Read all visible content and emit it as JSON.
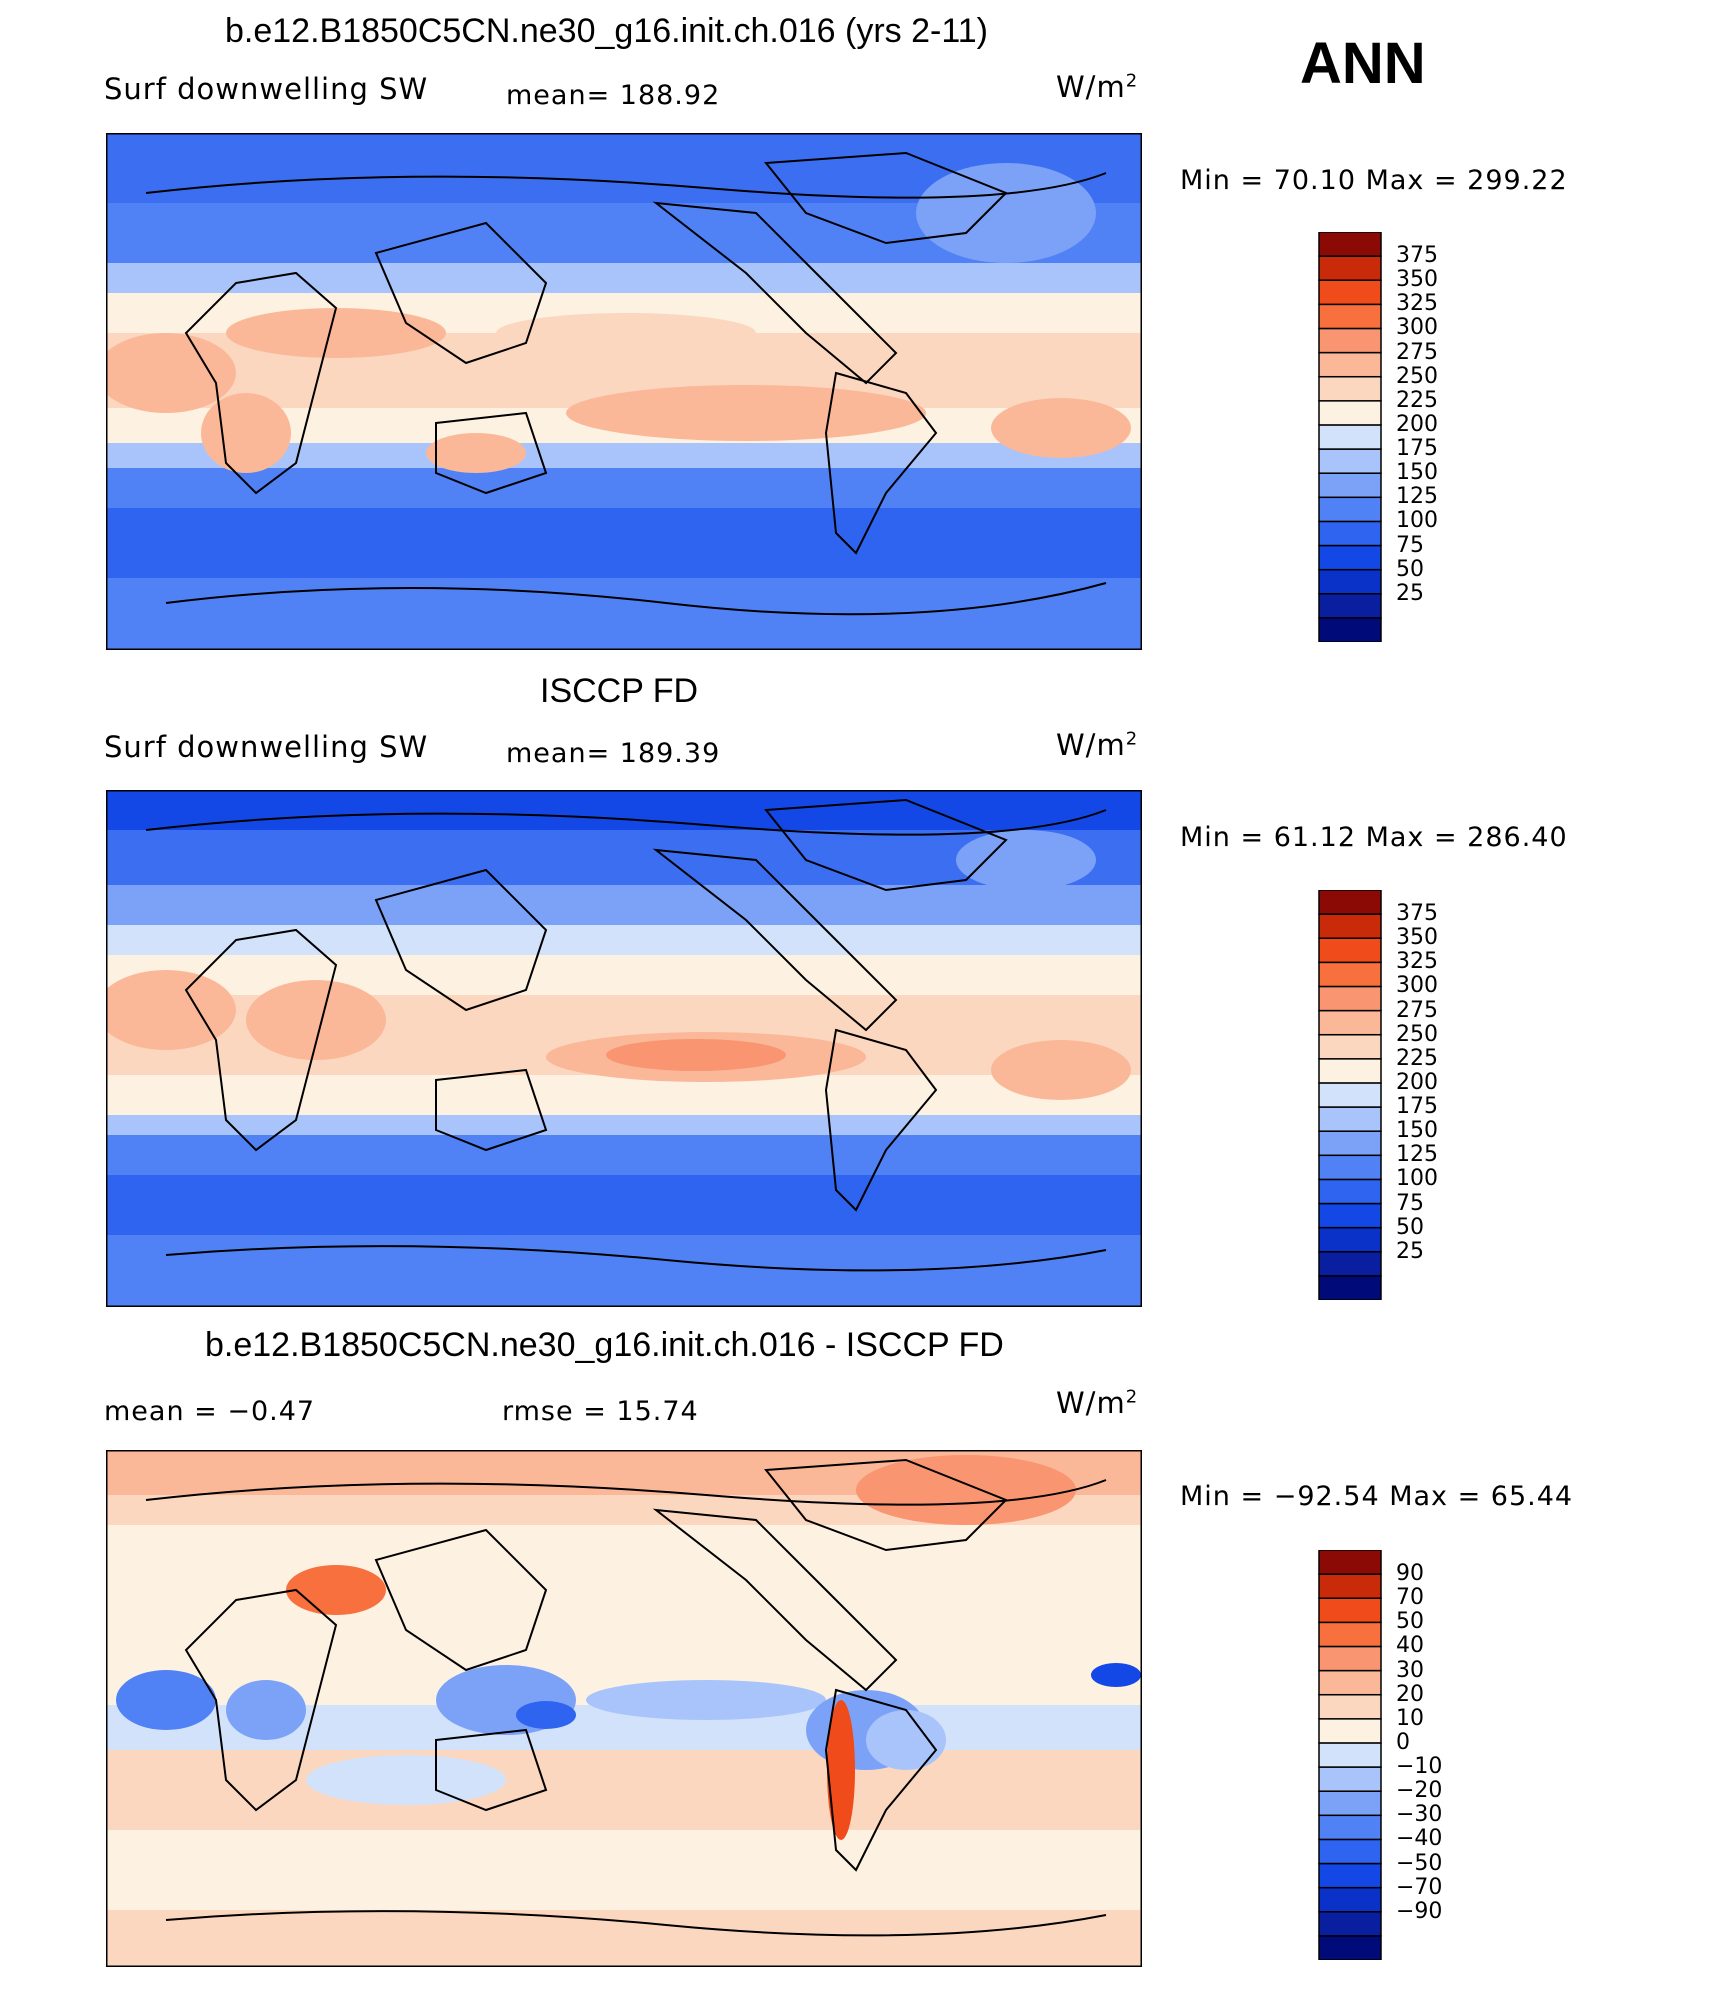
{
  "header": {
    "season": "ANN"
  },
  "unit_main": "W/m",
  "unit_exp": "2",
  "panels": [
    {
      "title": "b.e12.B1850C5CN.ne30_g16.init.ch.016 (yrs 2-11)",
      "left_label": "Surf  downwelling  SW",
      "mid_label": "mean=  188.92",
      "minmax": "Min  =    70.10  Max  =  299.22"
    },
    {
      "title": "ISCCP FD",
      "left_label": "Surf  downwelling  SW",
      "mid_label": "mean=  189.39",
      "minmax": "Min  =    61.12  Max  =  286.40"
    },
    {
      "title": "b.e12.B1850C5CN.ne30_g16.init.ch.016 - ISCCP FD",
      "left_label": "mean  =     −0.47",
      "mid_label": "rmse  =    15.74",
      "minmax": "Min  =  −92.54  Max  =    65.44"
    }
  ],
  "colorbars": {
    "abs_colors": [
      "#000a78",
      "#0a1ea0",
      "#0a32c8",
      "#1448e6",
      "#2e64f0",
      "#5082f5",
      "#7ca2f8",
      "#a8c4fa",
      "#d2e2fb",
      "#fdf1e1",
      "#fcd7c0",
      "#fbb898",
      "#f99570",
      "#f7703e",
      "#f04b1a",
      "#c82a0a",
      "#8c0a05"
    ],
    "abs_labels": [
      "375",
      "350",
      "325",
      "300",
      "275",
      "250",
      "225",
      "200",
      "175",
      "150",
      "125",
      "100",
      "75",
      "50",
      "25"
    ],
    "diff_colors": [
      "#000a78",
      "#0a1ea0",
      "#0a32c8",
      "#1448e6",
      "#2e64f0",
      "#5082f5",
      "#7ca2f8",
      "#a8c4fa",
      "#d2e2fb",
      "#fdf1e1",
      "#fcd7c0",
      "#fbb898",
      "#f99570",
      "#f7703e",
      "#f04b1a",
      "#c82a0a",
      "#8c0a05"
    ],
    "diff_labels": [
      "90",
      "70",
      "50",
      "40",
      "30",
      "20",
      "10",
      "0",
      "−10",
      "−20",
      "−30",
      "−40",
      "−50",
      "−70",
      "−90"
    ]
  },
  "chart_data": [
    {
      "type": "heatmap",
      "title": "b.e12.B1850C5CN.ne30_g16.init.ch.016 (yrs 2-11)",
      "variable": "Surf downwelling SW",
      "units": "W/m^2",
      "mean": 188.92,
      "min": 70.1,
      "max": 299.22,
      "levels": [
        25,
        50,
        75,
        100,
        125,
        150,
        175,
        200,
        225,
        250,
        275,
        300,
        325,
        350,
        375
      ]
    },
    {
      "type": "heatmap",
      "title": "ISCCP FD",
      "variable": "Surf downwelling SW",
      "units": "W/m^2",
      "mean": 189.39,
      "min": 61.12,
      "max": 286.4,
      "levels": [
        25,
        50,
        75,
        100,
        125,
        150,
        175,
        200,
        225,
        250,
        275,
        300,
        325,
        350,
        375
      ]
    },
    {
      "type": "heatmap",
      "title": "b.e12.B1850C5CN.ne30_g16.init.ch.016 - ISCCP FD",
      "units": "W/m^2",
      "mean": -0.47,
      "rmse": 15.74,
      "min": -92.54,
      "max": 65.44,
      "levels": [
        -90,
        -70,
        -50,
        -40,
        -30,
        -20,
        -10,
        0,
        10,
        20,
        30,
        40,
        50,
        70,
        90
      ]
    }
  ]
}
